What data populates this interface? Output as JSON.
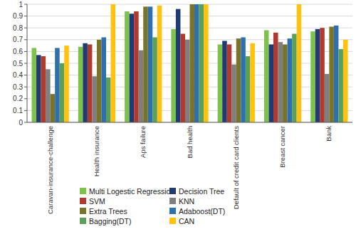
{
  "chart_data": {
    "type": "bar",
    "categories": [
      "Caravan-insurance-challenge",
      "Health insurance",
      "Aps failure",
      "Bad health",
      "Default of credit card clients",
      "Breast cancer",
      "Bank"
    ],
    "series": [
      {
        "name": "Multi Logestic Regression",
        "color": "#7dc24b",
        "values": [
          0.63,
          0.64,
          0.94,
          0.79,
          0.66,
          0.78,
          0.77
        ]
      },
      {
        "name": "Decision Tree",
        "color": "#1f3b73",
        "values": [
          0.57,
          0.67,
          0.92,
          0.96,
          0.69,
          0.66,
          0.79
        ]
      },
      {
        "name": "SVM",
        "color": "#b13a2f",
        "values": [
          0.56,
          0.66,
          0.94,
          0.75,
          0.66,
          0.76,
          0.8
        ]
      },
      {
        "name": "KNN",
        "color": "#7f7f7f",
        "values": [
          0.45,
          0.39,
          0.61,
          0.7,
          0.49,
          0.68,
          0.41
        ]
      },
      {
        "name": "Extra Trees",
        "color": "#7a7429",
        "values": [
          0.24,
          0.7,
          0.98,
          1.0,
          0.71,
          0.66,
          0.81
        ]
      },
      {
        "name": "Adaboost(DT)",
        "color": "#2e6fb0",
        "values": [
          0.63,
          0.72,
          0.98,
          1.0,
          0.72,
          0.71,
          0.82
        ]
      },
      {
        "name": "Bagging(DT)",
        "color": "#5aa05a",
        "values": [
          0.5,
          0.38,
          0.72,
          1.0,
          0.56,
          0.75,
          0.62
        ]
      },
      {
        "name": "CAN",
        "color": "#ffc20e",
        "values": [
          0.65,
          1.0,
          0.99,
          1.0,
          0.67,
          1.0,
          0.7
        ]
      }
    ],
    "ylim": [
      0,
      1
    ],
    "yticks": [
      0,
      0.1,
      0.2,
      0.3,
      0.4,
      0.5,
      0.6,
      0.7,
      0.8,
      0.9,
      1
    ],
    "grid": true,
    "legend": "bottom"
  }
}
